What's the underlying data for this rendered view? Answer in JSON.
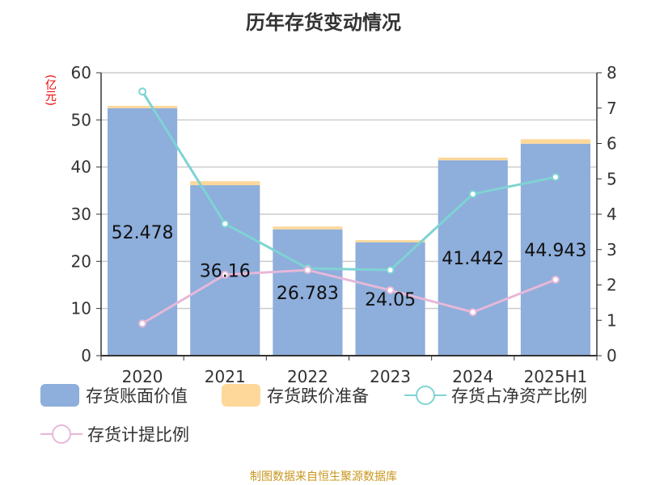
{
  "chart_data": {
    "type": "bar",
    "title": "历年存货变动情况",
    "ylabel": "(亿元)",
    "categories": [
      "2020",
      "2021",
      "2022",
      "2023",
      "2024",
      "2025H1"
    ],
    "ylim": [
      0,
      60
    ],
    "y2lim": [
      0,
      8
    ],
    "yticks": [
      "0",
      "10",
      "20",
      "30",
      "40",
      "50",
      "60"
    ],
    "y2ticks": [
      "0",
      "1",
      "2",
      "3",
      "4",
      "5",
      "6",
      "7",
      "8"
    ],
    "grid": true,
    "legend_position": "bottom",
    "series": [
      {
        "name": "存货账面价值",
        "type": "bar",
        "axis": "left",
        "color": "#8eaedb",
        "values": [
          52.478,
          36.16,
          26.783,
          24.05,
          41.442,
          44.943
        ],
        "labels": [
          "52.478",
          "36.16",
          "26.783",
          "24.05",
          "41.442",
          "44.943"
        ]
      },
      {
        "name": "存货跌价准备",
        "type": "bar",
        "axis": "left",
        "stack": true,
        "color": "#fdd89a",
        "values": [
          0.5,
          0.85,
          0.6,
          0.45,
          0.56,
          0.96
        ]
      },
      {
        "name": "存货占净资产比例",
        "type": "line",
        "axis": "right",
        "color": "#7fd3d3",
        "values": [
          7.47,
          3.73,
          2.47,
          2.42,
          4.57,
          5.05
        ]
      },
      {
        "name": "存货计提比例",
        "type": "line",
        "axis": "right",
        "color": "#e6b8d9",
        "values": [
          0.91,
          2.29,
          2.42,
          1.85,
          1.23,
          2.15
        ]
      }
    ]
  },
  "source": "制图数据来自恒生聚源数据库"
}
